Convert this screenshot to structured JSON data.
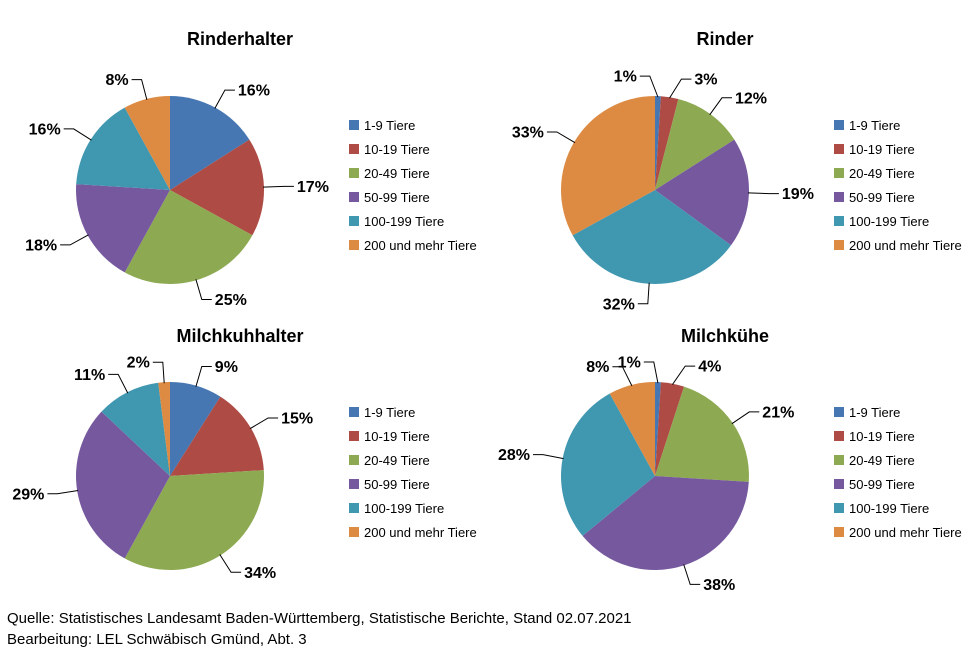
{
  "page": {
    "background": "#ffffff"
  },
  "legend": {
    "labels": [
      "1-9 Tiere",
      "10-19 Tiere",
      "20-49 Tiere",
      "50-99 Tiere",
      "100-199 Tiere",
      "200 und mehr Tiere"
    ],
    "position": "right"
  },
  "palette": [
    "#4677B2",
    "#AE4B44",
    "#8DA951",
    "#76589E",
    "#4097B0",
    "#DD8A42"
  ],
  "chart_data": [
    {
      "type": "pie",
      "title": "Rinderhalter",
      "categories": [
        "1-9 Tiere",
        "10-19 Tiere",
        "20-49 Tiere",
        "50-99 Tiere",
        "100-199 Tiere",
        "200 und mehr Tiere"
      ],
      "values": [
        16,
        17,
        25,
        18,
        16,
        8
      ],
      "unit": "%",
      "colors": [
        "#4677B2",
        "#AE4B44",
        "#8DA951",
        "#76589E",
        "#4097B0",
        "#DD8A42"
      ],
      "start_angle": "top",
      "direction": "clockwise",
      "legend_position": "right",
      "data_labels": [
        "16%",
        "17%",
        "25%",
        "18%",
        "16%",
        "8%"
      ]
    },
    {
      "type": "pie",
      "title": "Rinder",
      "categories": [
        "1-9 Tiere",
        "10-19 Tiere",
        "20-49 Tiere",
        "50-99 Tiere",
        "100-199 Tiere",
        "200 und mehr Tiere"
      ],
      "values": [
        1,
        3,
        12,
        19,
        32,
        33
      ],
      "unit": "%",
      "colors": [
        "#4677B2",
        "#AE4B44",
        "#8DA951",
        "#76589E",
        "#4097B0",
        "#DD8A42"
      ],
      "start_angle": "top",
      "direction": "clockwise",
      "legend_position": "right",
      "data_labels": [
        "1%",
        "3%",
        "12%",
        "19%",
        "32%",
        "33%"
      ]
    },
    {
      "type": "pie",
      "title": "Milchkuhhalter",
      "categories": [
        "1-9 Tiere",
        "10-19 Tiere",
        "20-49 Tiere",
        "50-99 Tiere",
        "100-199 Tiere",
        "200 und mehr Tiere"
      ],
      "values": [
        9,
        15,
        34,
        29,
        11,
        2
      ],
      "unit": "%",
      "colors": [
        "#4677B2",
        "#AE4B44",
        "#8DA951",
        "#76589E",
        "#4097B0",
        "#DD8A42"
      ],
      "start_angle": "top",
      "direction": "clockwise",
      "legend_position": "right",
      "data_labels": [
        "9%",
        "15%",
        "34%",
        "29%",
        "11%",
        "2%"
      ]
    },
    {
      "type": "pie",
      "title": "Milchkühe",
      "categories": [
        "1-9 Tiere",
        "10-19 Tiere",
        "20-49 Tiere",
        "50-99 Tiere",
        "100-199 Tiere",
        "200 und mehr Tiere"
      ],
      "values": [
        1,
        4,
        21,
        38,
        28,
        8
      ],
      "unit": "%",
      "colors": [
        "#4677B2",
        "#AE4B44",
        "#8DA951",
        "#76589E",
        "#4097B0",
        "#DD8A42"
      ],
      "start_angle": "top",
      "direction": "clockwise",
      "legend_position": "right",
      "data_labels": [
        "1%",
        "4%",
        "21%",
        "38%",
        "28%",
        "8%"
      ]
    }
  ],
  "footer": {
    "line1": "Quelle: Statistisches Landesamt Baden-Württemberg, Statistische Berichte, Stand 02.07.2021",
    "line2": "Bearbeitung: LEL Schwäbisch Gmünd, Abt. 3"
  }
}
